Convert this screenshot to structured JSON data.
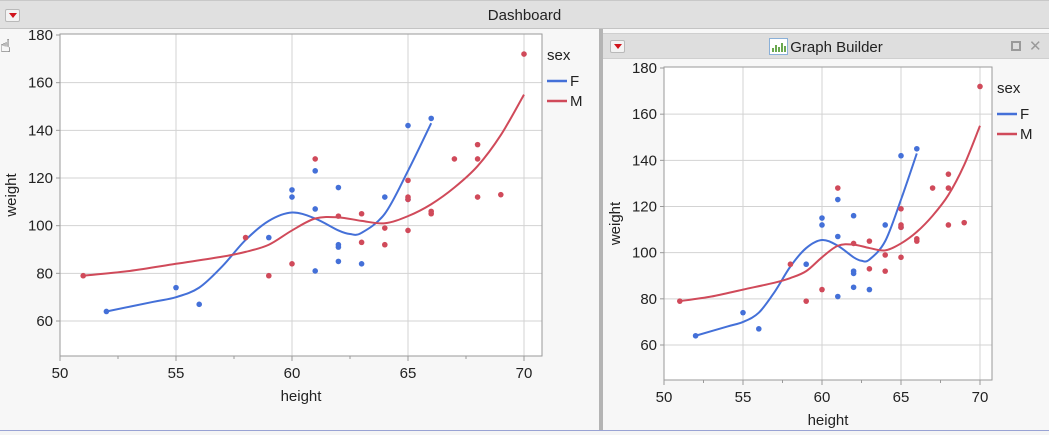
{
  "dashboard": {
    "title": "Dashboard"
  },
  "graph_builder": {
    "title": "Graph Builder"
  },
  "colors": {
    "F": "#4470d8",
    "M": "#d04a5a",
    "grid": "#d3d3d3",
    "axis": "#9a9a9a"
  },
  "chart_data": [
    {
      "type": "scatter",
      "panel": "Dashboard (left)",
      "title": "",
      "xlabel": "height",
      "ylabel": "weight",
      "xlim": [
        50,
        71
      ],
      "ylim": [
        45,
        180
      ],
      "xticks": [
        50,
        55,
        60,
        65,
        70
      ],
      "yticks": [
        60,
        80,
        100,
        120,
        140,
        160,
        180
      ],
      "grid": true,
      "legend": {
        "title": "sex",
        "position": "right",
        "entries": [
          "F",
          "M"
        ]
      },
      "series": [
        {
          "name": "F",
          "color": "#4470d8",
          "smoother": true,
          "points": [
            [
              52,
              64
            ],
            [
              55,
              74
            ],
            [
              56,
              67
            ],
            [
              59,
              95
            ],
            [
              60,
              112
            ],
            [
              60,
              115
            ],
            [
              61,
              81
            ],
            [
              61,
              107
            ],
            [
              61,
              123
            ],
            [
              62,
              85
            ],
            [
              62,
              91
            ],
            [
              62,
              92
            ],
            [
              62,
              116
            ],
            [
              63,
              84
            ],
            [
              64,
              112
            ],
            [
              65,
              142
            ],
            [
              65,
              111
            ],
            [
              66,
              145
            ]
          ],
          "curve": [
            [
              52,
              64
            ],
            [
              54,
              68
            ],
            [
              55,
              70
            ],
            [
              56,
              74
            ],
            [
              57,
              83
            ],
            [
              58,
              94
            ],
            [
              59,
              102
            ],
            [
              60,
              105.5
            ],
            [
              61,
              103
            ],
            [
              62,
              98
            ],
            [
              62.5,
              96.5
            ],
            [
              63,
              97
            ],
            [
              64,
              105
            ],
            [
              65,
              123
            ],
            [
              66,
              143
            ]
          ]
        },
        {
          "name": "M",
          "color": "#d04a5a",
          "smoother": true,
          "points": [
            [
              51,
              79
            ],
            [
              58,
              95
            ],
            [
              59,
              79
            ],
            [
              60,
              84
            ],
            [
              61,
              128
            ],
            [
              62,
              104
            ],
            [
              63,
              105
            ],
            [
              63,
              93
            ],
            [
              64,
              99
            ],
            [
              64,
              92
            ],
            [
              65,
              119
            ],
            [
              65,
              112
            ],
            [
              65,
              111
            ],
            [
              65,
              98
            ],
            [
              66,
              106
            ],
            [
              66,
              105
            ],
            [
              67,
              128
            ],
            [
              68,
              128
            ],
            [
              68,
              134
            ],
            [
              68,
              112
            ],
            [
              69,
              113
            ],
            [
              70,
              172
            ]
          ],
          "curve": [
            [
              51,
              79
            ],
            [
              53,
              81
            ],
            [
              55,
              84
            ],
            [
              57,
              87
            ],
            [
              58,
              89
            ],
            [
              59,
              92
            ],
            [
              60,
              98
            ],
            [
              61,
              103
            ],
            [
              62,
              103.5
            ],
            [
              63,
              102
            ],
            [
              64,
              101
            ],
            [
              65,
              104
            ],
            [
              66,
              109
            ],
            [
              67,
              116
            ],
            [
              68,
              125
            ],
            [
              69,
              138
            ],
            [
              70,
              155
            ]
          ]
        }
      ]
    },
    {
      "type": "scatter",
      "panel": "Graph Builder (right)",
      "title": "",
      "xlabel": "height",
      "ylabel": "weight",
      "xlim": [
        50,
        71
      ],
      "ylim": [
        45,
        180
      ],
      "xticks": [
        50,
        55,
        60,
        65,
        70
      ],
      "yticks": [
        60,
        80,
        100,
        120,
        140,
        160,
        180
      ],
      "grid": true,
      "legend": {
        "title": "sex",
        "position": "right",
        "entries": [
          "F",
          "M"
        ]
      },
      "series_ref": "same data as left chart"
    }
  ],
  "left_chart": {
    "legend_title": "sex",
    "legend_F": "F",
    "legend_M": "M",
    "xlabel": "height",
    "ylabel": "weight"
  },
  "right_chart": {
    "legend_title": "sex",
    "legend_F": "F",
    "legend_M": "M",
    "xlabel": "height",
    "ylabel": "weight"
  }
}
